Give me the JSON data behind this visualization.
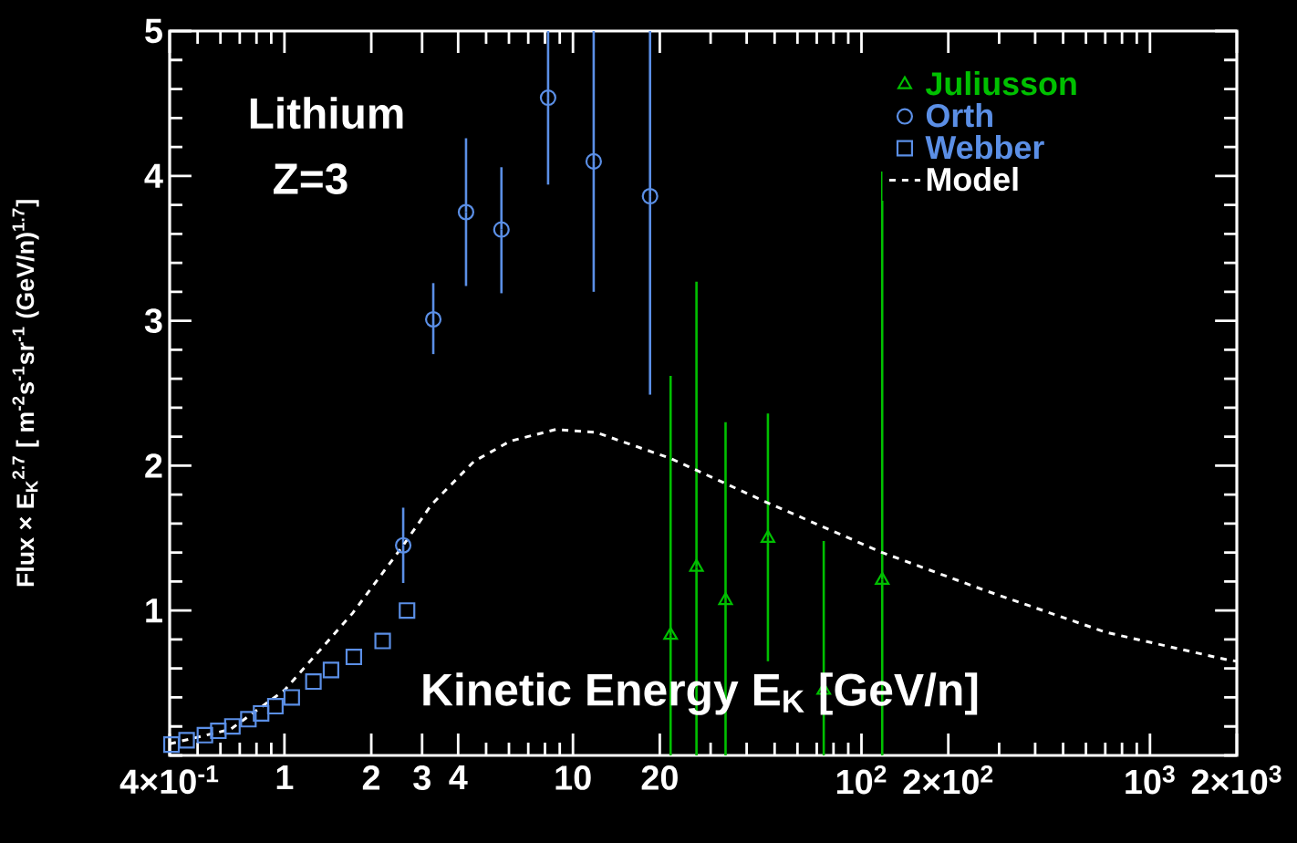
{
  "chart_data": {
    "type": "scatter",
    "xlabel": "Kinetic Energy E$_{K}$ [GeV/n]",
    "ylabel": "Flux × E$_{K}$$^{2.7}$ [ m$^{-2}$s$^{-1}$sr$^{-1}$ (GeV/n)$^{1.7}$]",
    "annotations": [
      "Lithium",
      "Z=3"
    ],
    "log": "x",
    "xlim": [
      0.4,
      2000
    ],
    "xticks": [
      {
        "value": 0.4,
        "label": "4×10$^{-1}$"
      },
      1,
      2,
      3,
      4,
      10,
      20,
      {
        "value": 100,
        "label": "10$^{2}$"
      },
      {
        "value": 200,
        "label": "2×10$^{2}$"
      },
      {
        "value": 1000,
        "label": "10$^{3}$"
      },
      {
        "value": 2000,
        "label": "2×10$^{3}$"
      }
    ],
    "ylim": [
      0,
      5
    ],
    "yticks": [
      1,
      2,
      3,
      4,
      5
    ],
    "legend": "top right",
    "series": [
      {
        "name": "Juliusson",
        "color": "#00c000",
        "marker": "triangle",
        "x": [
          21.8,
          26.8,
          33.8,
          47.4,
          74,
          118
        ],
        "values": [
          0.83,
          1.3,
          1.07,
          1.5,
          0.45,
          1.21
        ],
        "errors": [
          [
            0,
            2.62
          ],
          [
            0,
            3.27
          ],
          [
            0,
            2.3
          ],
          [
            0.65,
            2.36
          ],
          [
            0,
            1.48
          ],
          [
            0,
            4.03
          ]
        ]
      },
      {
        "name": "Orth",
        "color": "#5b8fe6",
        "marker": "circle",
        "x": [
          2.58,
          3.28,
          4.26,
          5.65,
          8.2,
          11.8,
          18.5
        ],
        "values": [
          1.45,
          3.01,
          3.75,
          3.63,
          4.54,
          4.1,
          3.86
        ],
        "errors": [
          [
            1.19,
            1.71
          ],
          [
            2.77,
            3.26
          ],
          [
            3.24,
            4.26
          ],
          [
            3.19,
            4.06
          ],
          [
            3.94,
            5
          ],
          [
            3.2,
            5
          ],
          [
            2.49,
            5
          ]
        ]
      },
      {
        "name": "Webber",
        "color": "#5b8fe6",
        "marker": "square",
        "x": [
          0.406,
          0.458,
          0.53,
          0.59,
          0.66,
          0.75,
          0.83,
          0.93,
          1.06,
          1.26,
          1.45,
          1.74,
          2.19,
          2.66
        ],
        "values": [
          0.075,
          0.105,
          0.14,
          0.17,
          0.2,
          0.25,
          0.29,
          0.34,
          0.4,
          0.51,
          0.59,
          0.68,
          0.79,
          1.0
        ]
      },
      {
        "name": "Model",
        "type": "line",
        "color": "#ffffff",
        "marker": "none",
        "line_style": "dashed",
        "x": [
          0.4,
          0.65,
          1.0,
          1.72,
          2.58,
          3.23,
          4.54,
          6.07,
          8.73,
          12.0,
          21.8,
          46.5,
          118,
          267,
          703,
          1853,
          2000
        ],
        "values": [
          0.08,
          0.18,
          0.45,
          0.98,
          1.45,
          1.73,
          2.03,
          2.17,
          2.25,
          2.23,
          2.05,
          1.75,
          1.4,
          1.14,
          0.85,
          0.66,
          0.65
        ]
      }
    ]
  }
}
